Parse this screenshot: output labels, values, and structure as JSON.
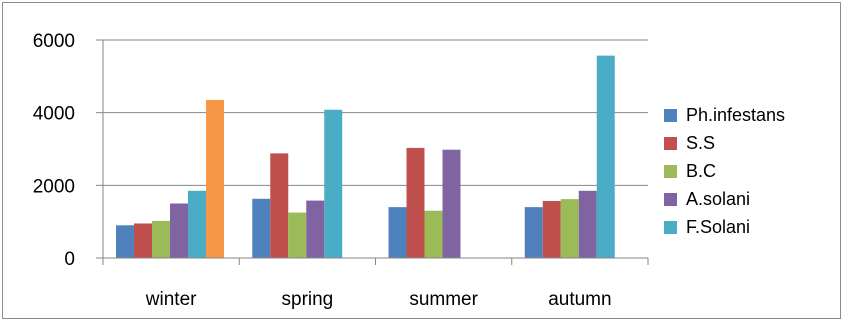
{
  "chart_data": {
    "type": "bar",
    "title": "",
    "xlabel": "",
    "ylabel": "",
    "categories": [
      "winter",
      "spring",
      "summer",
      "autumn"
    ],
    "ylim": [
      0,
      6000
    ],
    "yticks": [
      0,
      2000,
      4000,
      6000
    ],
    "grid": true,
    "legend_position": "right",
    "series": [
      {
        "name": "Ph.infestans",
        "color": "#4f81bd",
        "values": [
          900,
          1630,
          1400,
          1400
        ]
      },
      {
        "name": "S.S",
        "color": "#c0504d",
        "values": [
          950,
          2880,
          3030,
          1570
        ]
      },
      {
        "name": "B.C",
        "color": "#9bbb59",
        "values": [
          1020,
          1250,
          1300,
          1620
        ]
      },
      {
        "name": "A.solani",
        "color": "#8064a2",
        "values": [
          1500,
          1580,
          2980,
          1850
        ]
      },
      {
        "name": "F.Solani",
        "color": "#4bacc6",
        "values": [
          1850,
          4080,
          null,
          5570
        ]
      }
    ],
    "extra_bars": [
      {
        "category": "winter",
        "color": "#f79646",
        "value": 4350
      }
    ]
  }
}
